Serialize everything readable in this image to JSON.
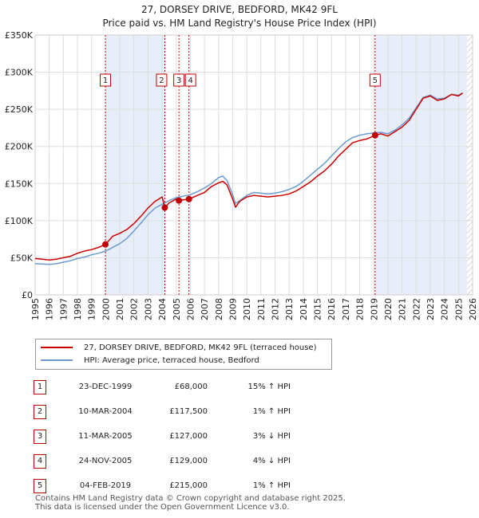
{
  "header": {
    "title": "27, DORSEY DRIVE, BEDFORD, MK42 9FL",
    "subtitle": "Price paid vs. HM Land Registry's House Price Index (HPI)"
  },
  "colors": {
    "property": "#cc0000",
    "hpi": "#6b9bd2",
    "shade": "#e8eef9",
    "marker": "#c00000"
  },
  "chart_data": {
    "type": "line",
    "title": "Price paid vs. HM Land Registry's House Price Index (HPI)",
    "xlabel": "",
    "ylabel": "",
    "xlim": [
      1995,
      2026
    ],
    "ylim": [
      0,
      350000
    ],
    "x_ticks": [
      1995,
      1996,
      1997,
      1998,
      1999,
      2000,
      2001,
      2002,
      2003,
      2004,
      2005,
      2006,
      2007,
      2008,
      2009,
      2010,
      2011,
      2012,
      2013,
      2014,
      2015,
      2016,
      2017,
      2018,
      2019,
      2020,
      2021,
      2022,
      2023,
      2024,
      2025,
      2026
    ],
    "y_ticks": [
      0,
      50000,
      100000,
      150000,
      200000,
      250000,
      300000,
      350000
    ],
    "y_tick_labels": [
      "£0",
      "£50K",
      "£100K",
      "£150K",
      "£200K",
      "£250K",
      "£300K",
      "£350K"
    ],
    "grid": true,
    "shaded_ranges": [
      [
        1999.98,
        2004.19
      ],
      [
        2019.09,
        2025.6
      ]
    ],
    "hatched_from": 2025.6,
    "series": [
      {
        "name": "27, DORSEY DRIVE, BEDFORD, MK42 9FL (terraced house)",
        "x": [
          1995,
          1995.5,
          1996,
          1996.5,
          1997,
          1997.5,
          1998,
          1998.5,
          1999,
          1999.5,
          1999.98,
          2000.5,
          2001,
          2001.5,
          2002,
          2002.5,
          2003,
          2003.5,
          2004,
          2004.19,
          2004.5,
          2005,
          2005.19,
          2005.5,
          2005.9,
          2006.5,
          2007,
          2007.5,
          2008,
          2008.3,
          2008.6,
          2009,
          2009.2,
          2009.5,
          2010,
          2010.5,
          2011,
          2011.5,
          2012,
          2012.5,
          2013,
          2013.5,
          2014,
          2014.5,
          2015,
          2015.5,
          2016,
          2016.5,
          2017,
          2017.5,
          2018,
          2018.5,
          2019.09,
          2019.5,
          2020,
          2020.5,
          2021,
          2021.5,
          2022,
          2022.5,
          2023,
          2023.5,
          2024,
          2024.5,
          2025,
          2025.3
        ],
        "values": [
          49000,
          48000,
          47000,
          48000,
          50000,
          52000,
          56000,
          59000,
          61000,
          64000,
          68000,
          79000,
          83000,
          88000,
          96000,
          106000,
          117000,
          126000,
          132000,
          117500,
          124000,
          129000,
          127000,
          128000,
          129000,
          134000,
          138000,
          146000,
          151000,
          153000,
          148000,
          129000,
          118000,
          126000,
          132000,
          134000,
          133000,
          132000,
          133000,
          134000,
          136000,
          140000,
          146000,
          152000,
          160000,
          167000,
          176000,
          187000,
          196000,
          205000,
          208000,
          210000,
          215000,
          217000,
          214000,
          220000,
          226000,
          235000,
          250000,
          265000,
          268000,
          262000,
          264000,
          270000,
          268000,
          272000
        ]
      },
      {
        "name": "HPI: Average price, terraced house, Bedford",
        "x": [
          1995,
          1995.5,
          1996,
          1996.5,
          1997,
          1997.5,
          1998,
          1998.5,
          1999,
          1999.5,
          2000,
          2000.5,
          2001,
          2001.5,
          2002,
          2002.5,
          2003,
          2003.5,
          2004,
          2004.5,
          2005,
          2005.5,
          2006,
          2006.5,
          2007,
          2007.5,
          2008,
          2008.3,
          2008.6,
          2009,
          2009.2,
          2009.5,
          2010,
          2010.5,
          2011,
          2011.5,
          2012,
          2012.5,
          2013,
          2013.5,
          2014,
          2014.5,
          2015,
          2015.5,
          2016,
          2016.5,
          2017,
          2017.5,
          2018,
          2018.5,
          2019,
          2019.5,
          2020,
          2020.5,
          2021,
          2021.5,
          2022,
          2022.5,
          2023,
          2023.5,
          2024,
          2024.5,
          2025,
          2025.3
        ],
        "values": [
          42000,
          41500,
          41000,
          42000,
          44000,
          46000,
          49000,
          51000,
          54000,
          56000,
          59000,
          64000,
          69000,
          76000,
          86000,
          97000,
          108000,
          117000,
          122000,
          127000,
          131000,
          133000,
          135000,
          139000,
          144000,
          150000,
          158000,
          160000,
          154000,
          135000,
          123000,
          127000,
          134000,
          138000,
          137000,
          136000,
          137000,
          139000,
          142000,
          146000,
          153000,
          161000,
          169000,
          177000,
          187000,
          197000,
          206000,
          212000,
          215000,
          217000,
          218000,
          219000,
          217000,
          222000,
          229000,
          238000,
          252000,
          266000,
          269000,
          264000,
          265000,
          270000,
          269000,
          272000
        ]
      }
    ],
    "sales": [
      {
        "n": "1",
        "x": 1999.98,
        "y": 68000
      },
      {
        "n": "2",
        "x": 2004.19,
        "y": 117500
      },
      {
        "n": "3",
        "x": 2005.19,
        "y": 127000
      },
      {
        "n": "4",
        "x": 2005.9,
        "y": 129000
      },
      {
        "n": "5",
        "x": 2019.09,
        "y": 215000
      }
    ]
  },
  "legend": {
    "property": "27, DORSEY DRIVE, BEDFORD, MK42 9FL (terraced house)",
    "hpi": "HPI: Average price, terraced house, Bedford"
  },
  "sales_table": [
    {
      "n": "1",
      "date": "23-DEC-1999",
      "price": "£68,000",
      "hpi": "15% ↑ HPI"
    },
    {
      "n": "2",
      "date": "10-MAR-2004",
      "price": "£117,500",
      "hpi": "1% ↑ HPI"
    },
    {
      "n": "3",
      "date": "11-MAR-2005",
      "price": "£127,000",
      "hpi": "3% ↓ HPI"
    },
    {
      "n": "4",
      "date": "24-NOV-2005",
      "price": "£129,000",
      "hpi": "4% ↓ HPI"
    },
    {
      "n": "5",
      "date": "04-FEB-2019",
      "price": "£215,000",
      "hpi": "1% ↑ HPI"
    }
  ],
  "footer": {
    "line1": "Contains HM Land Registry data © Crown copyright and database right 2025.",
    "line2": "This data is licensed under the Open Government Licence v3.0."
  }
}
